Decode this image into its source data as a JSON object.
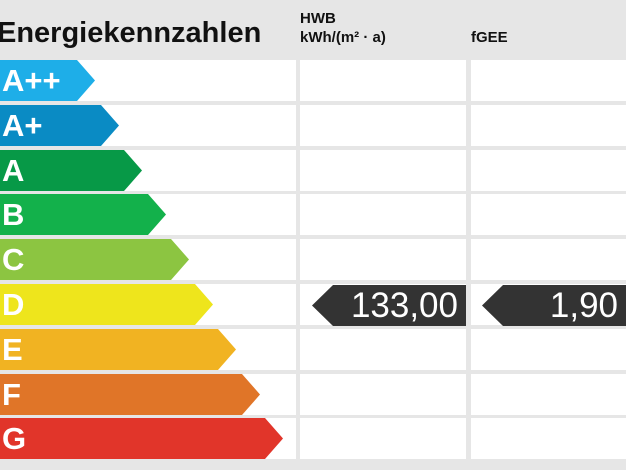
{
  "title": "Energiekennzahlen",
  "columns": {
    "hwb": {
      "label": "HWB",
      "unit": "kWh/(m² · a)"
    },
    "fgee": {
      "label": "fGEE"
    }
  },
  "chart_data": {
    "type": "table",
    "title": "Energiekennzahlen",
    "classes": [
      {
        "label": "A++",
        "color": "#1eaee8"
      },
      {
        "label": "A+",
        "color": "#0a8bc4"
      },
      {
        "label": "A",
        "color": "#079947"
      },
      {
        "label": "B",
        "color": "#13b14b"
      },
      {
        "label": "C",
        "color": "#8cc541"
      },
      {
        "label": "D",
        "color": "#eee51c"
      },
      {
        "label": "E",
        "color": "#f1b322"
      },
      {
        "label": "F",
        "color": "#e07528"
      },
      {
        "label": "G",
        "color": "#e1352a"
      }
    ],
    "values": {
      "hwb": {
        "value": "133,00",
        "class": "D"
      },
      "fgee": {
        "value": "1,90",
        "class": "D"
      }
    },
    "pointer_color": "#333333"
  }
}
